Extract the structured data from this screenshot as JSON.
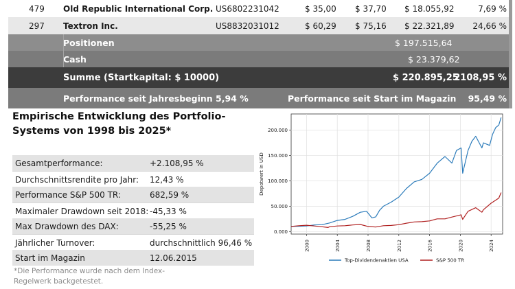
{
  "holdings": [
    {
      "qty": "479",
      "name": "Old Republic International Corp.",
      "isin": "US6802231042",
      "buy": "$ 35,00",
      "price": "$ 37,70",
      "value": "$ 18.055,92",
      "perf": "7,69 %"
    },
    {
      "qty": "297",
      "name": "Textron Inc.",
      "isin": "US8832031012",
      "buy": "$ 60,29",
      "price": "$ 75,16",
      "value": "$ 22.321,89",
      "perf": "24,66 %"
    }
  ],
  "summary": {
    "positions_label": "Positionen",
    "positions_value": "$ 197.515,64",
    "cash_label": "Cash",
    "cash_value": "$ 23.379,62",
    "sum_label": "Summe (Startkapital: $ 10000)",
    "sum_value": "$ 220.895,25",
    "sum_perf": "2108,95 %",
    "ytd_label": "Performance seit Jahresbeginn",
    "ytd_value": "5,94 %",
    "since_start_label": "Performance seit Start im Magazin",
    "since_start_value": "95,49 %"
  },
  "stats": {
    "title": "Empirische Entwicklung des Portfolio-Systems von 1998 bis 2025*",
    "rows": [
      {
        "label": "Gesamtperformance:",
        "value": "+2.108,95 %"
      },
      {
        "label": "Durchschnittsrendite pro Jahr:",
        "value": "12,43 %"
      },
      {
        "label": "Performance S&P 500 TR:",
        "value": "682,59 %"
      },
      {
        "label": "Maximaler Drawdown seit 2018:",
        "value": "-45,33 %"
      },
      {
        "label": "Max Drawdown des DAX:",
        "value": "-55,25 %"
      },
      {
        "label": "Jährlicher Turnover:",
        "value": "durchschnittlich 96,46 %"
      },
      {
        "label": "Start im Magazin",
        "value": "12.06.2015"
      }
    ],
    "footnote": "*Die Performance wurde nach dem Index-Regelwerk backgetestet."
  },
  "chart_data": {
    "type": "line",
    "ylabel": "Depotwert in USD",
    "xlabel": "",
    "title": "",
    "xlim": [
      1998,
      2025.5
    ],
    "ylim": [
      -5000,
      232000
    ],
    "x_ticks": [
      2000,
      2004,
      2008,
      2012,
      2016,
      2020,
      2024
    ],
    "x_tick_labels": [
      "2000",
      "2004",
      "2008",
      "2012",
      "2016",
      "2020",
      "2024"
    ],
    "y_ticks": [
      0,
      50000,
      100000,
      150000,
      200000
    ],
    "y_tick_labels": [
      "0.000",
      "50.000",
      "100.000",
      "150.000",
      "200.000"
    ],
    "grid": true,
    "legend_position": "bottom",
    "series": [
      {
        "name": "Top-Dividendenaktien USA",
        "color": "#2b7bba",
        "x": [
          1998,
          1999,
          2000,
          2001,
          2002,
          2003,
          2004,
          2005,
          2006,
          2007,
          2007.8,
          2008.5,
          2009,
          2009.5,
          2010,
          2011,
          2012,
          2013,
          2014,
          2015,
          2016,
          2017,
          2018,
          2018.9,
          2019.5,
          2020.1,
          2020.3,
          2021,
          2021.5,
          2022,
          2022.8,
          2023,
          2023.8,
          2024.2,
          2024.6,
          2025,
          2025.3
        ],
        "y": [
          10000,
          10500,
          11000,
          13000,
          13500,
          17000,
          22000,
          24000,
          30000,
          38000,
          40000,
          27000,
          29000,
          42000,
          50000,
          58000,
          68000,
          85000,
          98000,
          103000,
          115000,
          135000,
          148000,
          135000,
          160000,
          165000,
          115000,
          160000,
          178000,
          188000,
          165000,
          175000,
          170000,
          192000,
          205000,
          210000,
          225000
        ]
      },
      {
        "name": "S&P 500 TR",
        "color": "#b02020",
        "x": [
          1998,
          1999,
          2000,
          2001,
          2002,
          2002.8,
          2003,
          2004,
          2005,
          2006,
          2007,
          2008,
          2009,
          2010,
          2011,
          2012,
          2013,
          2014,
          2015,
          2016,
          2017,
          2018,
          2019,
          2020.1,
          2020.3,
          2021,
          2022,
          2022.8,
          2023,
          2024,
          2025,
          2025.3
        ],
        "y": [
          10000,
          11500,
          12500,
          11000,
          9500,
          8000,
          9500,
          11000,
          11500,
          13000,
          14000,
          10000,
          9000,
          11500,
          12000,
          13500,
          16500,
          19000,
          19500,
          21000,
          25000,
          25000,
          29000,
          33000,
          24000,
          40000,
          47000,
          38000,
          43000,
          56000,
          66000,
          77000
        ]
      }
    ]
  }
}
